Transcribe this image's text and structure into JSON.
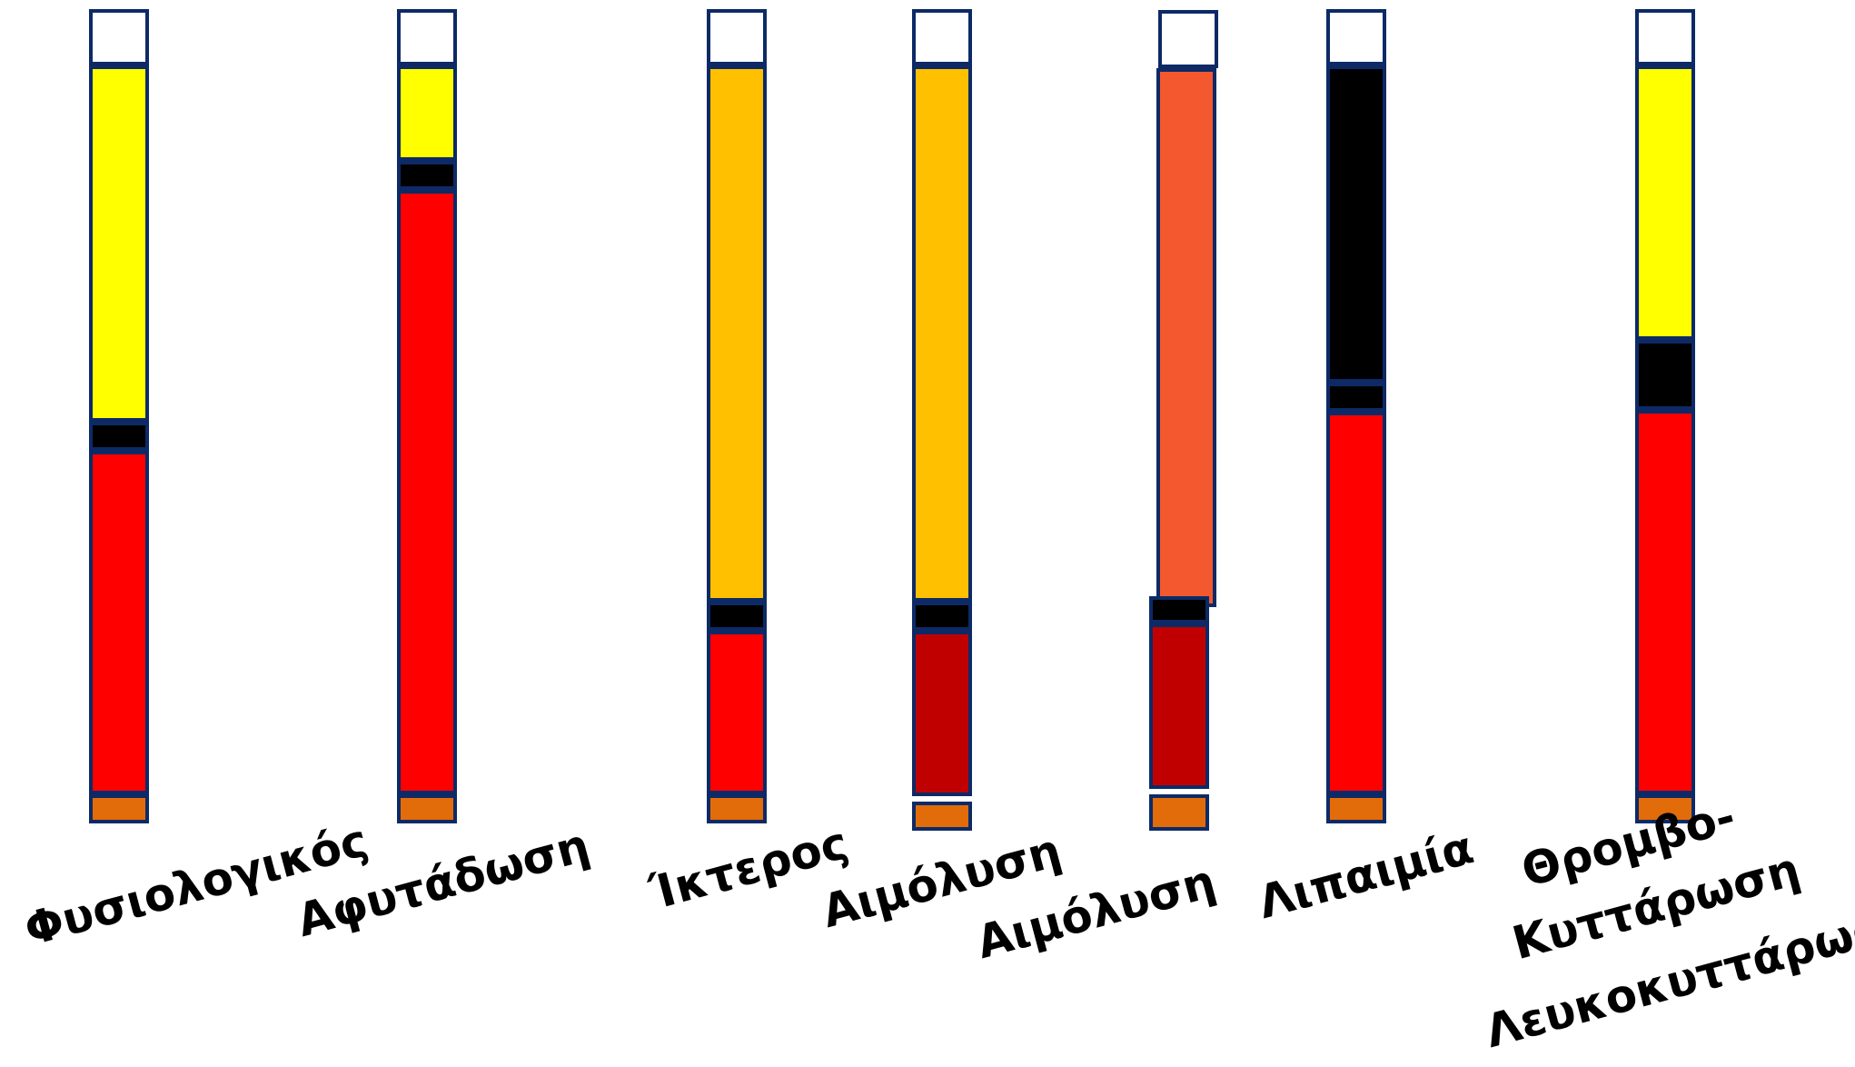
{
  "colors": {
    "white": "#ffffff",
    "yellow": "#ffff00",
    "amber": "#ffc000",
    "orange_red": "#f4582f",
    "black": "#000000",
    "red": "#ff0000",
    "dark_red": "#c00000",
    "orange": "#e36c0a",
    "border": "#0d2a66"
  },
  "tubes": [
    {
      "name": "physiological",
      "segments": [
        "white",
        "yellow",
        "black",
        "red",
        "orange"
      ],
      "labels": [
        "Φυσιολογικός"
      ]
    },
    {
      "name": "dehydration",
      "segments": [
        "white",
        "yellow",
        "black",
        "red",
        "orange"
      ],
      "labels": [
        "Αφυτάδωση"
      ]
    },
    {
      "name": "jaundice",
      "segments": [
        "white",
        "amber",
        "black",
        "red",
        "orange"
      ],
      "labels": [
        "Ίκτερος"
      ]
    },
    {
      "name": "hemolysis-1",
      "segments": [
        "white",
        "amber",
        "black",
        "dark_red",
        "orange"
      ],
      "labels": [
        "Αιμόλυση"
      ]
    },
    {
      "name": "hemolysis-2",
      "segments": [
        "white",
        "orange_red",
        "black",
        "dark_red",
        "orange"
      ],
      "labels": [
        "Αιμόλυση"
      ]
    },
    {
      "name": "lipemia",
      "segments": [
        "white",
        "black",
        "black",
        "red",
        "orange"
      ],
      "labels": [
        "Λιπαιμία"
      ]
    },
    {
      "name": "thrombocytosis-leukocytosis",
      "segments": [
        "white",
        "yellow",
        "black",
        "red",
        "orange"
      ],
      "labels": [
        "Θρομβο-",
        "Κυττάρωση",
        "Λευκοκυττάρωση"
      ]
    }
  ]
}
